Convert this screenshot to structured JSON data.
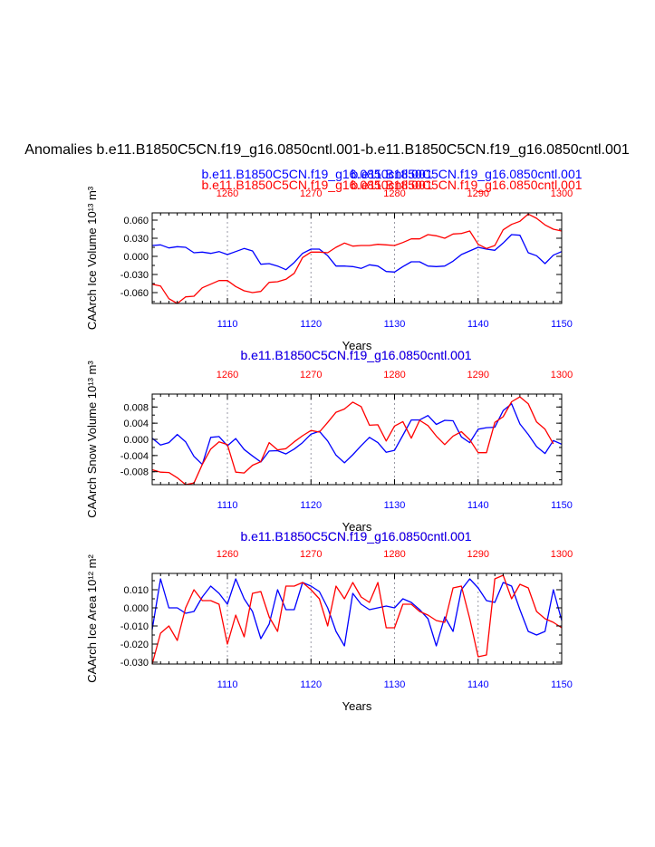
{
  "figure": {
    "main_title": "Anomalies b.e11.B1850C5CN.f19_g16.0850cntl.001-b.e11.B1850C5CN.f19_g16.0850cntl.001",
    "colors": {
      "blue": "#0000ff",
      "red": "#ff0000",
      "grid": "#9a9aa6",
      "axis": "#000000"
    }
  },
  "chart_data": [
    {
      "type": "line",
      "panel_headers": [
        {
          "text": "b.e11.B1850C5CN.f19_g16.0850cntl.001",
          "color": "#0000ff"
        },
        {
          "text": "b.e11.B1850C5CN.f19_g16.0850cntl.001",
          "color": "#ff0000"
        },
        {
          "text": "b.e11.B1850C5CN.f19_g16.0850cntl.001",
          "color": "#0000ff"
        },
        {
          "text": "b.e11.B1850C5CN.f19_g16.0850cntl.001",
          "color": "#ff0000"
        }
      ],
      "ylabel": "CAArch Ice Volume 10¹³ m³",
      "xlabel": "Years",
      "bottom_axis": {
        "range": [
          1101,
          1150
        ],
        "ticks": [
          "1110",
          "1120",
          "1130",
          "1140",
          "1150"
        ],
        "color": "#0000ff"
      },
      "top_axis": {
        "range": [
          1251,
          1300
        ],
        "ticks": [
          "1260",
          "1270",
          "1280",
          "1290",
          "1300"
        ],
        "color": "#ff0000"
      },
      "ylim": [
        -0.078,
        0.072
      ],
      "yticks": [
        -0.06,
        -0.03,
        0.0,
        0.03,
        0.06
      ],
      "ytick_labels": [
        "-0.060",
        "-0.030",
        "0.000",
        "0.030",
        "0.060"
      ],
      "vertical_grid": true,
      "series": [
        {
          "color": "#0000ff",
          "axis": "bottom",
          "values": [
            0.018,
            0.019,
            0.014,
            0.016,
            0.015,
            0.006,
            0.007,
            0.005,
            0.008,
            0.003,
            0.008,
            0.013,
            0.009,
            -0.013,
            -0.012,
            -0.016,
            -0.022,
            -0.01,
            0.005,
            0.012,
            0.012,
            0.001,
            -0.016,
            -0.016,
            -0.017,
            -0.02,
            -0.014,
            -0.016,
            -0.025,
            -0.026,
            -0.017,
            -0.009,
            -0.009,
            -0.016,
            -0.017,
            -0.016,
            -0.008,
            0.003,
            0.009,
            0.015,
            0.012,
            0.01,
            0.022,
            0.036,
            0.035,
            0.006,
            0.001,
            -0.012,
            0.002,
            0.008
          ]
        },
        {
          "color": "#ff0000",
          "axis": "top",
          "values": [
            -0.046,
            -0.049,
            -0.07,
            -0.078,
            -0.067,
            -0.066,
            -0.052,
            -0.046,
            -0.04,
            -0.04,
            -0.05,
            -0.057,
            -0.06,
            -0.058,
            -0.043,
            -0.042,
            -0.038,
            -0.028,
            -0.002,
            0.007,
            0.007,
            0.006,
            0.015,
            0.022,
            0.017,
            0.018,
            0.018,
            0.02,
            0.019,
            0.018,
            0.023,
            0.029,
            0.029,
            0.036,
            0.034,
            0.03,
            0.037,
            0.038,
            0.042,
            0.02,
            0.013,
            0.018,
            0.044,
            0.053,
            0.058,
            0.07,
            0.063,
            0.052,
            0.045,
            0.042
          ]
        }
      ]
    },
    {
      "type": "line",
      "panel_headers": [
        {
          "text": "b.e11.B1850C5CN.f19_g16.0850cntl.001",
          "color": "#ff0000"
        },
        {
          "text": "b.e11.B1850C5CN.f19_g16.0850cntl.001",
          "color": "#0000ff"
        }
      ],
      "ylabel": "CAArch Snow Volume 10¹³ m³",
      "xlabel": "Years",
      "bottom_axis": {
        "range": [
          1101,
          1150
        ],
        "ticks": [
          "1110",
          "1120",
          "1130",
          "1140",
          "1150"
        ],
        "color": "#0000ff"
      },
      "top_axis": {
        "range": [
          1251,
          1300
        ],
        "ticks": [
          "1260",
          "1270",
          "1280",
          "1290",
          "1300"
        ],
        "color": "#ff0000"
      },
      "ylim": [
        -0.0112,
        0.0112
      ],
      "yticks": [
        -0.008,
        -0.004,
        0.0,
        0.004,
        0.008
      ],
      "ytick_labels": [
        "-0.008",
        "-0.004",
        "0.000",
        "0.004",
        "0.008"
      ],
      "vertical_grid": true,
      "series": [
        {
          "color": "#0000ff",
          "axis": "bottom",
          "values": [
            0.0003,
            -0.0014,
            -0.0008,
            0.0012,
            -0.0006,
            -0.0042,
            -0.0062,
            0.0005,
            0.0007,
            -0.0016,
            0.0002,
            -0.0025,
            -0.0041,
            -0.0056,
            -0.0029,
            -0.0028,
            -0.0036,
            -0.0024,
            -0.0008,
            0.0013,
            0.002,
            -0.0004,
            -0.0039,
            -0.0058,
            -0.0038,
            -0.0016,
            0.0005,
            -0.0008,
            -0.0032,
            -0.0027,
            0.001,
            0.0048,
            0.0048,
            0.0059,
            0.0037,
            0.0047,
            0.0046,
            0.0006,
            -0.0008,
            0.0025,
            0.0029,
            0.003,
            0.0071,
            0.0088,
            0.0038,
            0.0012,
            -0.0018,
            -0.0035,
            -0.0003,
            -0.0012
          ]
        },
        {
          "color": "#ff0000",
          "axis": "top",
          "values": [
            -0.0075,
            -0.0081,
            -0.0082,
            -0.0095,
            -0.0112,
            -0.0108,
            -0.0062,
            -0.0024,
            -0.0006,
            -0.0013,
            -0.0081,
            -0.0083,
            -0.0064,
            -0.0055,
            -0.0008,
            -0.0026,
            -0.0023,
            -0.0006,
            0.0009,
            0.0022,
            0.0018,
            0.0042,
            0.0067,
            0.0075,
            0.0092,
            0.0081,
            0.0035,
            0.0036,
            -0.0004,
            0.0033,
            0.0044,
            0.0003,
            0.0047,
            0.0034,
            0.0008,
            -0.0013,
            0.0008,
            0.0019,
            -0.0001,
            -0.0033,
            -0.0033,
            0.0042,
            0.0056,
            0.0093,
            0.0105,
            0.0088,
            0.0043,
            0.0025,
            -0.0011
          ]
        }
      ]
    },
    {
      "type": "line",
      "panel_headers": [
        {
          "text": "b.e11.B1850C5CN.f19_g16.0850cntl.001",
          "color": "#ff0000"
        },
        {
          "text": "b.e11.B1850C5CN.f19_g16.0850cntl.001",
          "color": "#0000ff"
        }
      ],
      "ylabel": "CAArch Ice Area 10¹² m²",
      "xlabel": "Years",
      "bottom_axis": {
        "range": [
          1101,
          1150
        ],
        "ticks": [
          "1110",
          "1120",
          "1130",
          "1140",
          "1150"
        ],
        "color": "#0000ff"
      },
      "top_axis": {
        "range": [
          1251,
          1300
        ],
        "ticks": [
          "1260",
          "1270",
          "1280",
          "1290",
          "1300"
        ],
        "color": "#ff0000"
      },
      "ylim": [
        -0.031,
        0.019
      ],
      "yticks": [
        -0.03,
        -0.02,
        -0.01,
        0.0,
        0.01
      ],
      "ytick_labels": [
        "-0.030",
        "-0.020",
        "-0.010",
        "0.000",
        "0.010"
      ],
      "vertical_grid": true,
      "series": [
        {
          "color": "#0000ff",
          "axis": "bottom",
          "values": [
            -0.012,
            0.016,
            0.0,
            0.0,
            -0.003,
            -0.002,
            0.006,
            0.012,
            0.008,
            0.002,
            0.016,
            0.005,
            -0.002,
            -0.017,
            -0.009,
            0.01,
            -0.001,
            -0.001,
            0.014,
            0.012,
            0.009,
            0.0,
            -0.013,
            -0.021,
            0.008,
            0.002,
            -0.001,
            0.0,
            0.001,
            0.0,
            0.005,
            0.003,
            -0.001,
            -0.006,
            -0.021,
            -0.005,
            -0.013,
            0.01,
            0.016,
            0.011,
            0.004,
            0.003,
            0.014,
            0.012,
            -0.001,
            -0.013,
            -0.015,
            -0.013,
            0.01,
            -0.007
          ]
        },
        {
          "color": "#ff0000",
          "axis": "top",
          "values": [
            -0.031,
            -0.014,
            -0.01,
            -0.018,
            0.0,
            0.01,
            0.004,
            0.004,
            0.002,
            -0.02,
            -0.004,
            -0.016,
            0.008,
            0.009,
            -0.005,
            -0.013,
            0.012,
            0.012,
            0.014,
            0.01,
            0.005,
            -0.01,
            0.012,
            0.005,
            0.014,
            0.006,
            0.003,
            0.014,
            -0.011,
            -0.011,
            0.002,
            0.002,
            -0.002,
            -0.004,
            -0.007,
            -0.008,
            0.011,
            0.012,
            -0.006,
            -0.027,
            -0.026,
            0.016,
            0.018,
            0.005,
            0.013,
            0.011,
            -0.002,
            -0.006,
            -0.008,
            -0.011
          ]
        }
      ]
    }
  ]
}
